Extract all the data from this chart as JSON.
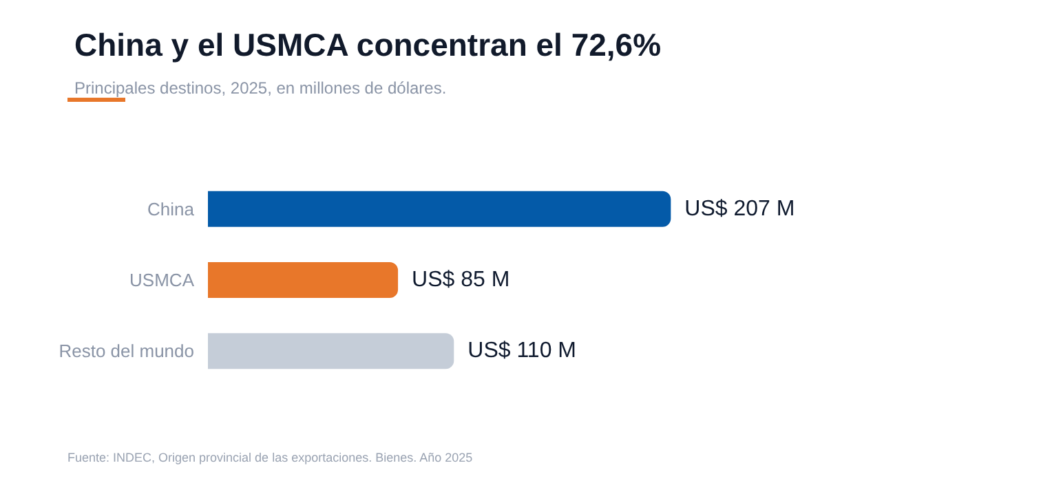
{
  "chart_data": {
    "type": "bar",
    "orientation": "horizontal",
    "title": "China y el USMCA concentran el 72,6%",
    "subtitle": "Principales destinos, 2025, en millones de dólares.",
    "categories": [
      "China",
      "USMCA",
      "Resto del mundo"
    ],
    "values": [
      207,
      85,
      110
    ],
    "colors": [
      "#045aa8",
      "#e8772a",
      "#c5cdd8"
    ],
    "value_labels": [
      "US$ 207 M",
      "US$ 85 M",
      "US$ 110 M"
    ],
    "annotations": [
      "Fuente: INDEC, Origen provincial de las exportaciones. Bienes. Año 2025"
    ]
  }
}
